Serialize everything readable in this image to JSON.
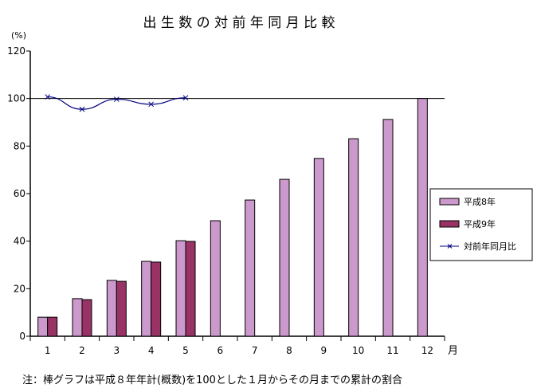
{
  "chart_data": {
    "type": "bar",
    "title": "出 生 数 の 対 前 年 同 月 比 較",
    "ylabel": "(%)",
    "xlabel": "月",
    "ylim": [
      0,
      120
    ],
    "yticks": [
      0,
      20,
      40,
      60,
      80,
      100,
      120
    ],
    "categories": [
      "1",
      "2",
      "3",
      "4",
      "5",
      "6",
      "7",
      "8",
      "9",
      "10",
      "11",
      "12"
    ],
    "series": [
      {
        "name": "平成8年",
        "type": "bar",
        "color": "#cc99cc",
        "values": [
          8.0,
          15.8,
          23.5,
          31.5,
          40.2,
          48.6,
          57.3,
          66.0,
          74.8,
          83.1,
          91.2,
          100.0
        ]
      },
      {
        "name": "平成9年",
        "type": "bar",
        "color": "#993366",
        "values": [
          8.0,
          15.4,
          23.1,
          31.2,
          39.9,
          null,
          null,
          null,
          null,
          null,
          null,
          null
        ]
      },
      {
        "name": "対前年同月比",
        "type": "line",
        "color": "#000080",
        "marker": "x",
        "values": [
          100.7,
          95.5,
          99.7,
          97.6,
          100.3,
          null,
          null,
          null,
          null,
          null,
          null,
          null
        ]
      }
    ],
    "reference_line": 100,
    "legend_position": "right",
    "grid": false,
    "note": "注：棒グラフは平成８年年計(概数)を100とした１月からその月までの累計の割合"
  }
}
